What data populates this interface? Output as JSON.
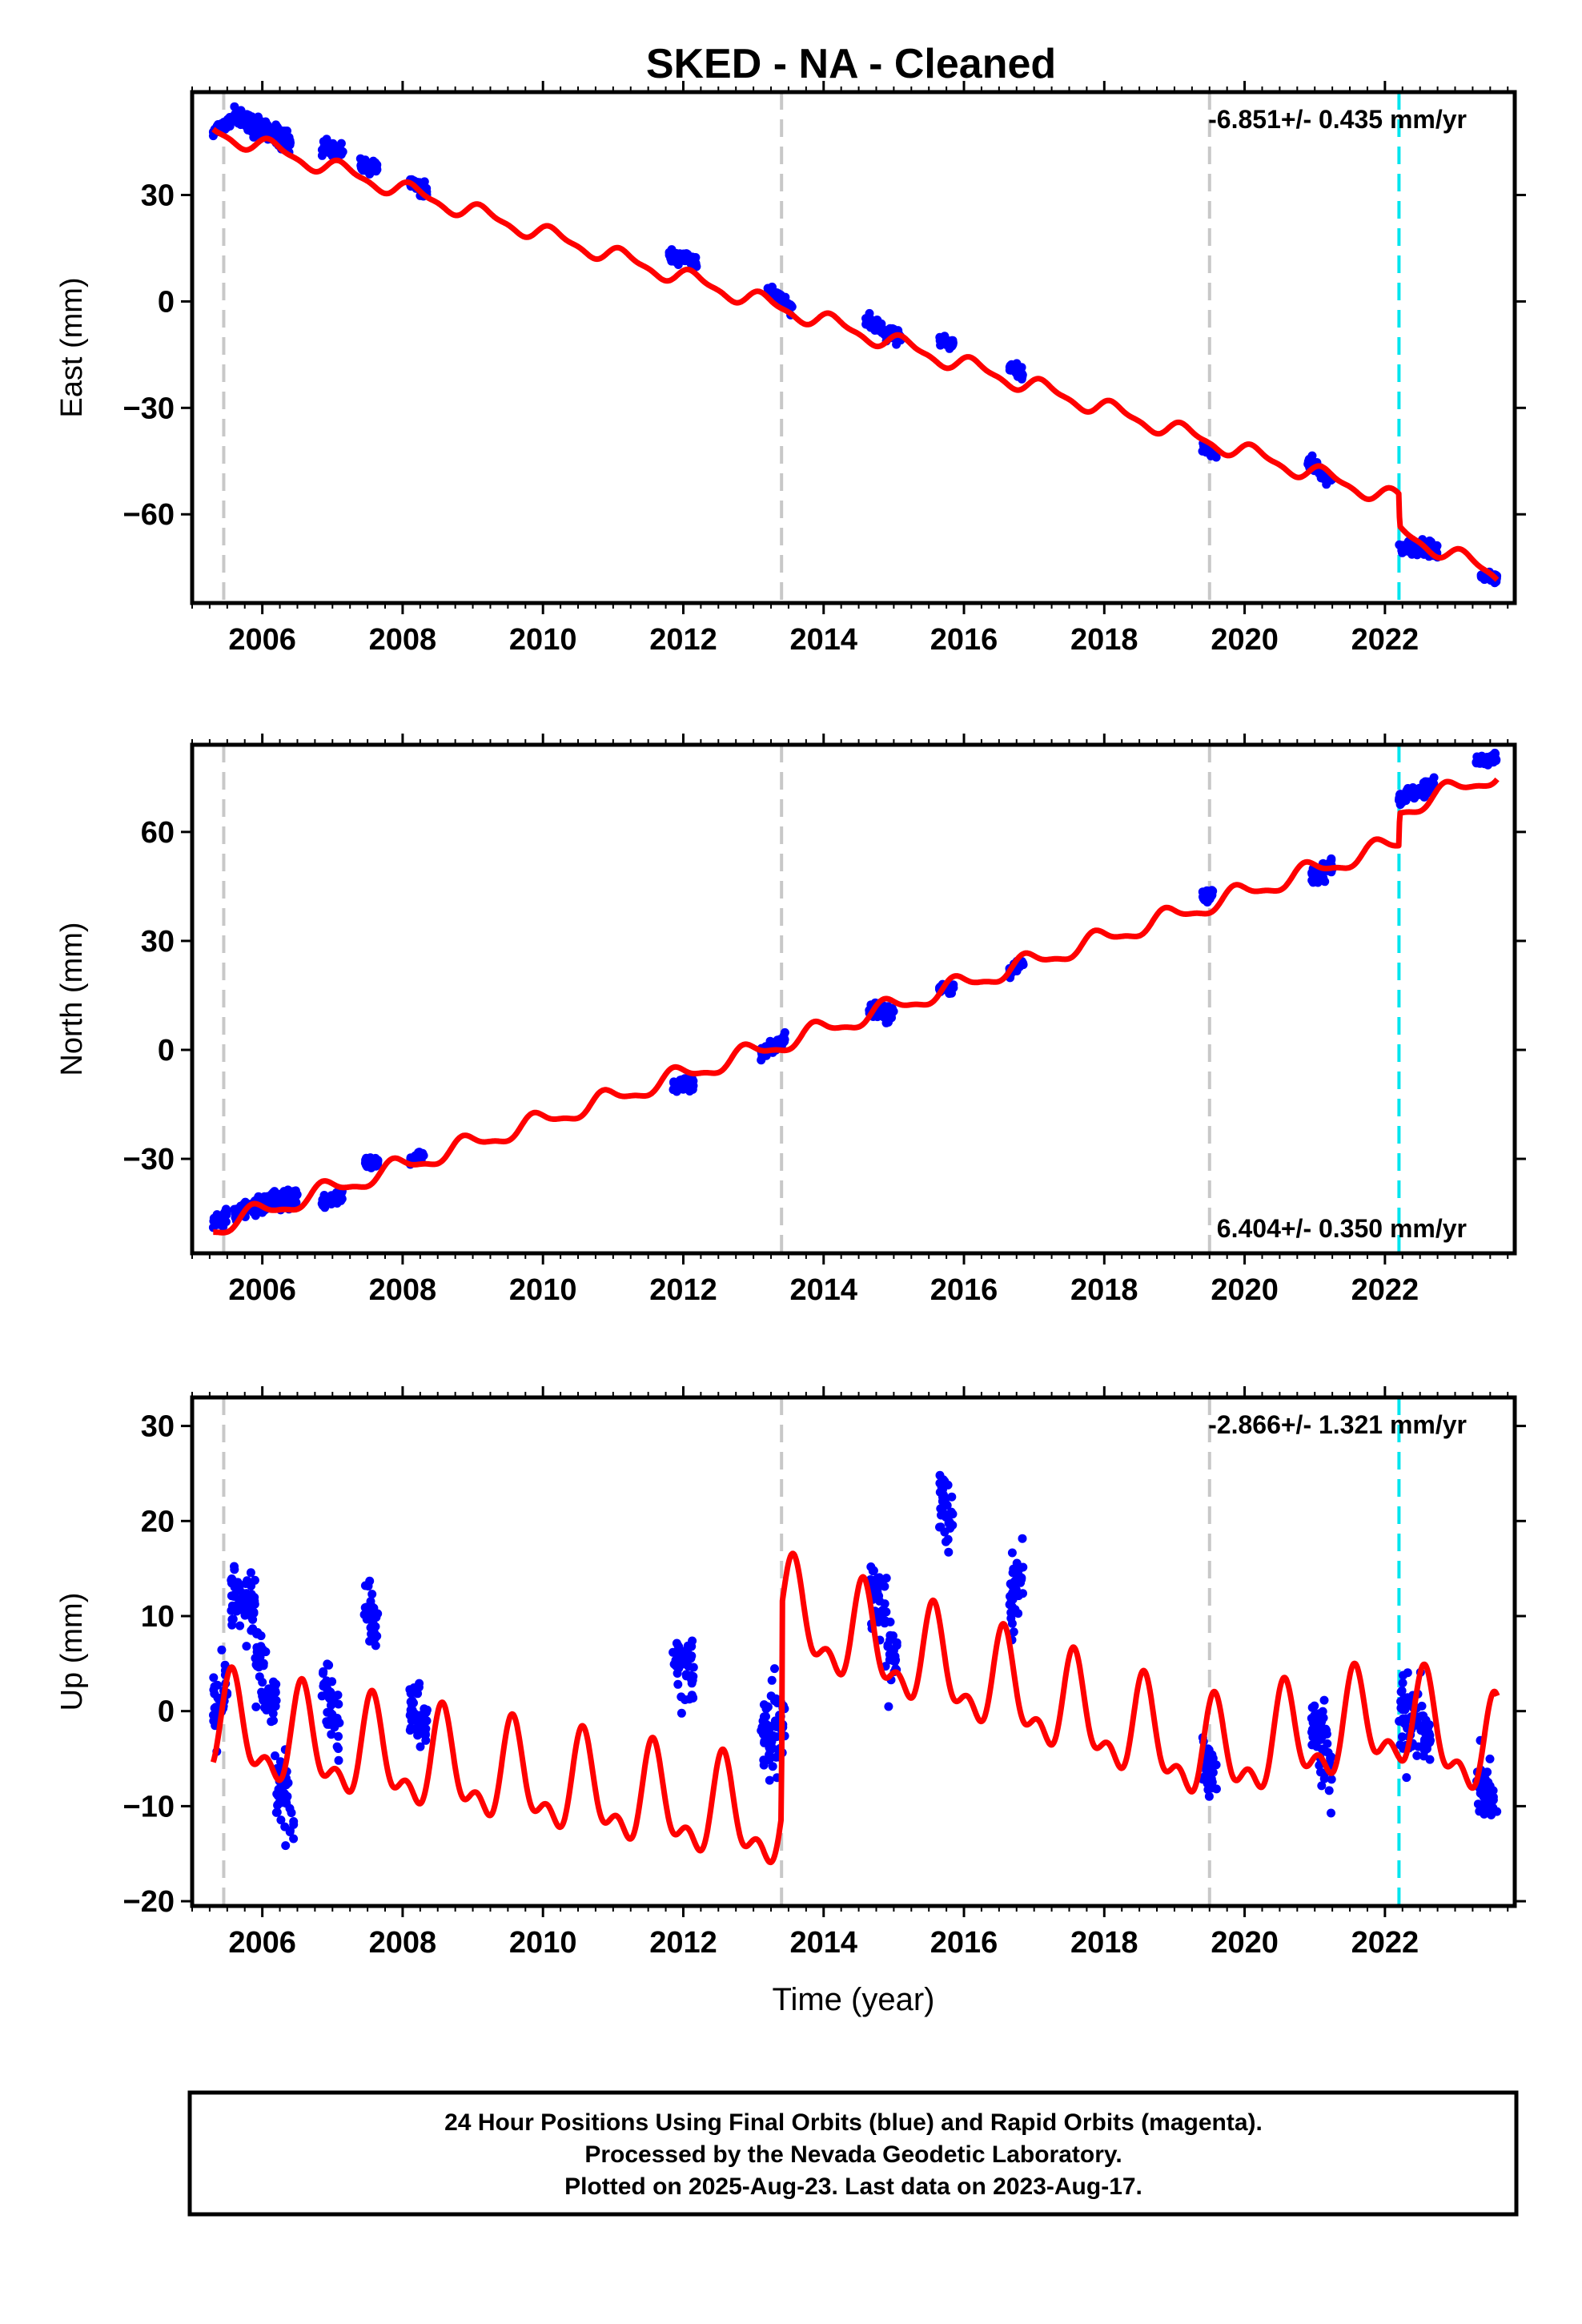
{
  "title": "SKED  - NA - Cleaned",
  "colors": {
    "data": "#0000ff",
    "model": "#ff0000",
    "equipment_line": "#c8c8c8",
    "earthquake_line": "#00e5ee",
    "frame": "#000000"
  },
  "footer": {
    "line1": "24 Hour Positions Using Final Orbits (blue) and Rapid Orbits (magenta).",
    "line2": "Processed by the Nevada Geodetic Laboratory.",
    "line3": "Plotted on 2025-Aug-23. Last data on 2023-Aug-17."
  },
  "chart_data": [
    {
      "type": "scatter",
      "component": "east",
      "ylabel": "East (mm)",
      "xlabel": "",
      "rate": "-6.851+/- 0.435 mm/yr",
      "rate_position": "top-right",
      "xlim": [
        2005.0,
        2023.85
      ],
      "ylim": [
        -85,
        59
      ],
      "xticks": [
        "2006",
        "2008",
        "2010",
        "2012",
        "2014",
        "2016",
        "2018",
        "2020",
        "2022"
      ],
      "yticks": [
        -60,
        -30,
        0,
        30
      ],
      "ytick_labels": [
        "−60",
        "−30",
        "0",
        "30"
      ],
      "equipment_changes": [
        2005.45,
        2013.4,
        2019.5
      ],
      "earthquakes": [
        2022.2
      ],
      "model": {
        "trend": [
          [
            2005.3,
            48
          ],
          [
            2022.2,
            -56
          ],
          [
            2022.21,
            -65
          ],
          [
            2023.6,
            -77
          ]
        ],
        "annual_amplitude": 2.2,
        "semiannual_amplitude": 0.8,
        "phase": 0.6
      },
      "clusters": [
        {
          "x": [
            2005.3,
            2005.55
          ],
          "y": [
            48,
            51
          ],
          "spread": 1.5
        },
        {
          "x": [
            2005.6,
            2006.4
          ],
          "y": [
            52,
            45
          ],
          "spread": 2.5
        },
        {
          "x": [
            2006.85,
            2007.15
          ],
          "y": [
            44,
            42
          ],
          "spread": 1.5
        },
        {
          "x": [
            2007.4,
            2007.65
          ],
          "y": [
            38,
            38
          ],
          "spread": 1.5
        },
        {
          "x": [
            2008.1,
            2008.35
          ],
          "y": [
            34,
            31
          ],
          "spread": 1.5
        },
        {
          "x": [
            2011.8,
            2012.2
          ],
          "y": [
            13,
            11
          ],
          "spread": 1.5
        },
        {
          "x": [
            2013.2,
            2013.55
          ],
          "y": [
            3,
            -2
          ],
          "spread": 1.5
        },
        {
          "x": [
            2014.6,
            2015.1
          ],
          "y": [
            -6,
            -10
          ],
          "spread": 1.8
        },
        {
          "x": [
            2015.65,
            2015.85
          ],
          "y": [
            -11,
            -12
          ],
          "spread": 1.2
        },
        {
          "x": [
            2016.65,
            2016.85
          ],
          "y": [
            -18,
            -21
          ],
          "spread": 1.5
        },
        {
          "x": [
            2019.4,
            2019.6
          ],
          "y": [
            -41,
            -43
          ],
          "spread": 1.2
        },
        {
          "x": [
            2020.9,
            2021.25
          ],
          "y": [
            -45,
            -51
          ],
          "spread": 1.5
        },
        {
          "x": [
            2022.2,
            2022.75
          ],
          "y": [
            -69,
            -70
          ],
          "spread": 1.8
        },
        {
          "x": [
            2023.35,
            2023.6
          ],
          "y": [
            -77,
            -78
          ],
          "spread": 1.5
        }
      ]
    },
    {
      "type": "scatter",
      "component": "north",
      "ylabel": "North (mm)",
      "xlabel": "",
      "rate": "6.404+/- 0.350 mm/yr",
      "rate_position": "bottom-right",
      "xlim": [
        2005.0,
        2023.85
      ],
      "ylim": [
        -56,
        84
      ],
      "xticks": [
        "2006",
        "2008",
        "2010",
        "2012",
        "2014",
        "2016",
        "2018",
        "2020",
        "2022"
      ],
      "yticks": [
        -30,
        0,
        30,
        60
      ],
      "ytick_labels": [
        "−30",
        "0",
        "30",
        "60"
      ],
      "equipment_changes": [
        2005.45,
        2013.4,
        2019.5
      ],
      "earthquakes": [
        2022.2
      ],
      "model": {
        "trend": [
          [
            2005.3,
            -49
          ],
          [
            2022.2,
            57
          ],
          [
            2022.21,
            66
          ],
          [
            2023.6,
            76
          ]
        ],
        "annual_amplitude": 2.4,
        "semiannual_amplitude": 0.8,
        "phase": 2.2
      },
      "clusters": [
        {
          "x": [
            2005.3,
            2005.5
          ],
          "y": [
            -48,
            -45
          ],
          "spread": 1.8
        },
        {
          "x": [
            2005.6,
            2006.5
          ],
          "y": [
            -45,
            -40
          ],
          "spread": 2.2
        },
        {
          "x": [
            2006.85,
            2007.15
          ],
          "y": [
            -42,
            -40
          ],
          "spread": 1.5
        },
        {
          "x": [
            2007.45,
            2007.65
          ],
          "y": [
            -31,
            -31
          ],
          "spread": 1.5
        },
        {
          "x": [
            2008.1,
            2008.3
          ],
          "y": [
            -31,
            -29
          ],
          "spread": 1.2
        },
        {
          "x": [
            2011.85,
            2012.15
          ],
          "y": [
            -10,
            -9
          ],
          "spread": 1.5
        },
        {
          "x": [
            2013.1,
            2013.45
          ],
          "y": [
            -1,
            3
          ],
          "spread": 1.5
        },
        {
          "x": [
            2014.65,
            2015.0
          ],
          "y": [
            11,
            10
          ],
          "spread": 2.0
        },
        {
          "x": [
            2015.65,
            2015.85
          ],
          "y": [
            17,
            17
          ],
          "spread": 1.2
        },
        {
          "x": [
            2016.65,
            2016.85
          ],
          "y": [
            22,
            24
          ],
          "spread": 1.2
        },
        {
          "x": [
            2019.4,
            2019.55
          ],
          "y": [
            42,
            43
          ],
          "spread": 1.5
        },
        {
          "x": [
            2020.95,
            2021.25
          ],
          "y": [
            47,
            51
          ],
          "spread": 2.0
        },
        {
          "x": [
            2022.2,
            2022.7
          ],
          "y": [
            69,
            73
          ],
          "spread": 1.8
        },
        {
          "x": [
            2023.3,
            2023.6
          ],
          "y": [
            80,
            80
          ],
          "spread": 1.2
        }
      ]
    },
    {
      "type": "scatter",
      "component": "up",
      "ylabel": "Up (mm)",
      "xlabel": "Time (year)",
      "rate": "-2.866+/- 1.321 mm/yr",
      "rate_position": "top-right",
      "xlim": [
        2005.0,
        2023.85
      ],
      "ylim": [
        -20.5,
        33
      ],
      "xticks": [
        "2006",
        "2008",
        "2010",
        "2012",
        "2014",
        "2016",
        "2018",
        "2020",
        "2022"
      ],
      "yticks": [
        -20,
        -10,
        0,
        10,
        20,
        30
      ],
      "ytick_labels": [
        "−20",
        "−10",
        "0",
        "10",
        "20",
        "30"
      ],
      "equipment_changes": [
        2005.45,
        2013.4,
        2019.5
      ],
      "earthquakes": [
        2022.2
      ],
      "model": {
        "trend": [
          [
            2005.3,
            -2
          ],
          [
            2013.4,
            -12
          ],
          [
            2013.41,
            10
          ],
          [
            2019.5,
            -5
          ],
          [
            2022.2,
            -1
          ],
          [
            2023.6,
            -5
          ]
        ],
        "annual_amplitude": 4.5,
        "semiannual_amplitude": 2.5,
        "phase": 4.2
      },
      "clusters": [
        {
          "x": [
            2005.3,
            2005.5
          ],
          "y": [
            0,
            2
          ],
          "spread": 3.5
        },
        {
          "x": [
            2005.55,
            2005.9
          ],
          "y": [
            12,
            10
          ],
          "spread": 3.5
        },
        {
          "x": [
            2005.9,
            2006.2
          ],
          "y": [
            6,
            0
          ],
          "spread": 4.0
        },
        {
          "x": [
            2006.2,
            2006.45
          ],
          "y": [
            -8,
            -11
          ],
          "spread": 4.0
        },
        {
          "x": [
            2006.85,
            2007.1
          ],
          "y": [
            3,
            -2
          ],
          "spread": 3.5
        },
        {
          "x": [
            2007.45,
            2007.65
          ],
          "y": [
            11,
            9
          ],
          "spread": 3.0
        },
        {
          "x": [
            2008.1,
            2008.35
          ],
          "y": [
            0,
            -2
          ],
          "spread": 3.0
        },
        {
          "x": [
            2011.85,
            2012.15
          ],
          "y": [
            6,
            3
          ],
          "spread": 3.0
        },
        {
          "x": [
            2013.1,
            2013.45
          ],
          "y": [
            -3,
            -2
          ],
          "spread": 4.0
        },
        {
          "x": [
            2014.65,
            2015.05
          ],
          "y": [
            14,
            5
          ],
          "spread": 4.0
        },
        {
          "x": [
            2015.65,
            2015.85
          ],
          "y": [
            22,
            20
          ],
          "spread": 3.0
        },
        {
          "x": [
            2016.65,
            2016.85
          ],
          "y": [
            12,
            15
          ],
          "spread": 3.5
        },
        {
          "x": [
            2019.4,
            2019.6
          ],
          "y": [
            -4,
            -8
          ],
          "spread": 3.0
        },
        {
          "x": [
            2020.95,
            2021.25
          ],
          "y": [
            0,
            -6
          ],
          "spread": 3.5
        },
        {
          "x": [
            2022.2,
            2022.65
          ],
          "y": [
            0,
            -2
          ],
          "spread": 3.5
        },
        {
          "x": [
            2023.3,
            2023.6
          ],
          "y": [
            -7,
            -10
          ],
          "spread": 3.0
        }
      ]
    }
  ]
}
